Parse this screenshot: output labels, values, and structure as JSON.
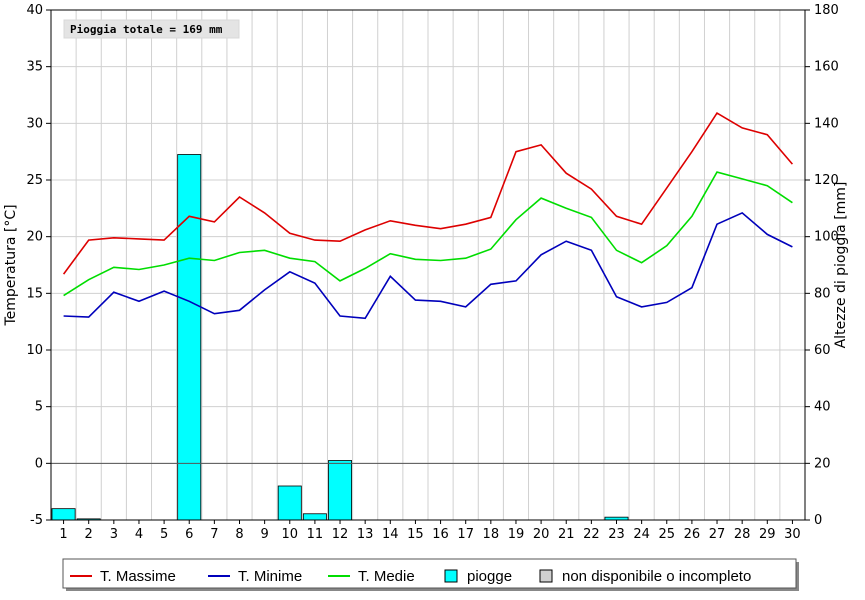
{
  "chart_data": {
    "type": "line",
    "title": "",
    "annotation": "Pioggia totale = 169 mm",
    "xlabel": "",
    "ylabel": "Temperatura [°C]",
    "y2label": "Altezze di pioggia [mm]",
    "x": [
      1,
      2,
      3,
      4,
      5,
      6,
      7,
      8,
      9,
      10,
      11,
      12,
      13,
      14,
      15,
      16,
      17,
      18,
      19,
      20,
      21,
      22,
      23,
      24,
      25,
      26,
      27,
      28,
      29,
      30
    ],
    "ylim": [
      -5,
      40
    ],
    "y2lim": [
      0,
      180
    ],
    "yticks": [
      -5,
      0,
      5,
      10,
      15,
      20,
      25,
      30,
      35,
      40
    ],
    "y2ticks": [
      0,
      20,
      40,
      60,
      80,
      100,
      120,
      140,
      160,
      180
    ],
    "grid": true,
    "legend_position": "bottom",
    "series": [
      {
        "name": "T. Massime",
        "color": "#dd0000",
        "type": "line",
        "values": [
          16.7,
          19.7,
          19.9,
          19.8,
          19.7,
          21.8,
          21.3,
          23.5,
          22.1,
          20.3,
          19.7,
          19.6,
          20.6,
          21.4,
          21.0,
          20.7,
          21.1,
          21.7,
          27.5,
          28.1,
          25.6,
          24.2,
          21.8,
          21.1,
          24.3,
          27.5,
          30.9,
          29.6,
          29.0,
          26.4
        ]
      },
      {
        "name": "T. Minime",
        "color": "#0000bb",
        "type": "line",
        "values": [
          13.0,
          12.9,
          15.1,
          14.3,
          15.2,
          14.3,
          13.2,
          13.5,
          15.3,
          16.9,
          15.9,
          13.0,
          12.8,
          16.5,
          14.4,
          14.3,
          13.8,
          15.8,
          16.1,
          18.4,
          19.6,
          18.8,
          14.7,
          13.8,
          14.2,
          15.5,
          21.1,
          22.1,
          20.2,
          19.1
        ]
      },
      {
        "name": "T. Medie",
        "color": "#00dd00",
        "type": "line",
        "values": [
          14.8,
          16.2,
          17.3,
          17.1,
          17.5,
          18.1,
          17.9,
          18.6,
          18.8,
          18.1,
          17.8,
          16.1,
          17.2,
          18.5,
          18.0,
          17.9,
          18.1,
          18.9,
          21.5,
          23.4,
          22.5,
          21.7,
          18.8,
          17.7,
          19.2,
          21.8,
          25.7,
          25.1,
          24.5,
          23.0
        ]
      },
      {
        "name": "piogge",
        "color": "#00ffff",
        "type": "bar",
        "axis": "right",
        "values": [
          4,
          0.4,
          0,
          0,
          0,
          129,
          0,
          0,
          0,
          12,
          2.2,
          21,
          0,
          0,
          0,
          0,
          0,
          0,
          0,
          0,
          0,
          0,
          1,
          0,
          0,
          0,
          0,
          0,
          0,
          0
        ]
      },
      {
        "name": "non disponibile o incompleto",
        "color": "#d0d0d0",
        "type": "bar",
        "axis": "right",
        "values": [
          0,
          0,
          0,
          0,
          0,
          0,
          0,
          0,
          0,
          0,
          0,
          0,
          0,
          0,
          0,
          0,
          0,
          0,
          0,
          0,
          0,
          0,
          0,
          0,
          0,
          0,
          0,
          0,
          0,
          0
        ]
      }
    ]
  }
}
